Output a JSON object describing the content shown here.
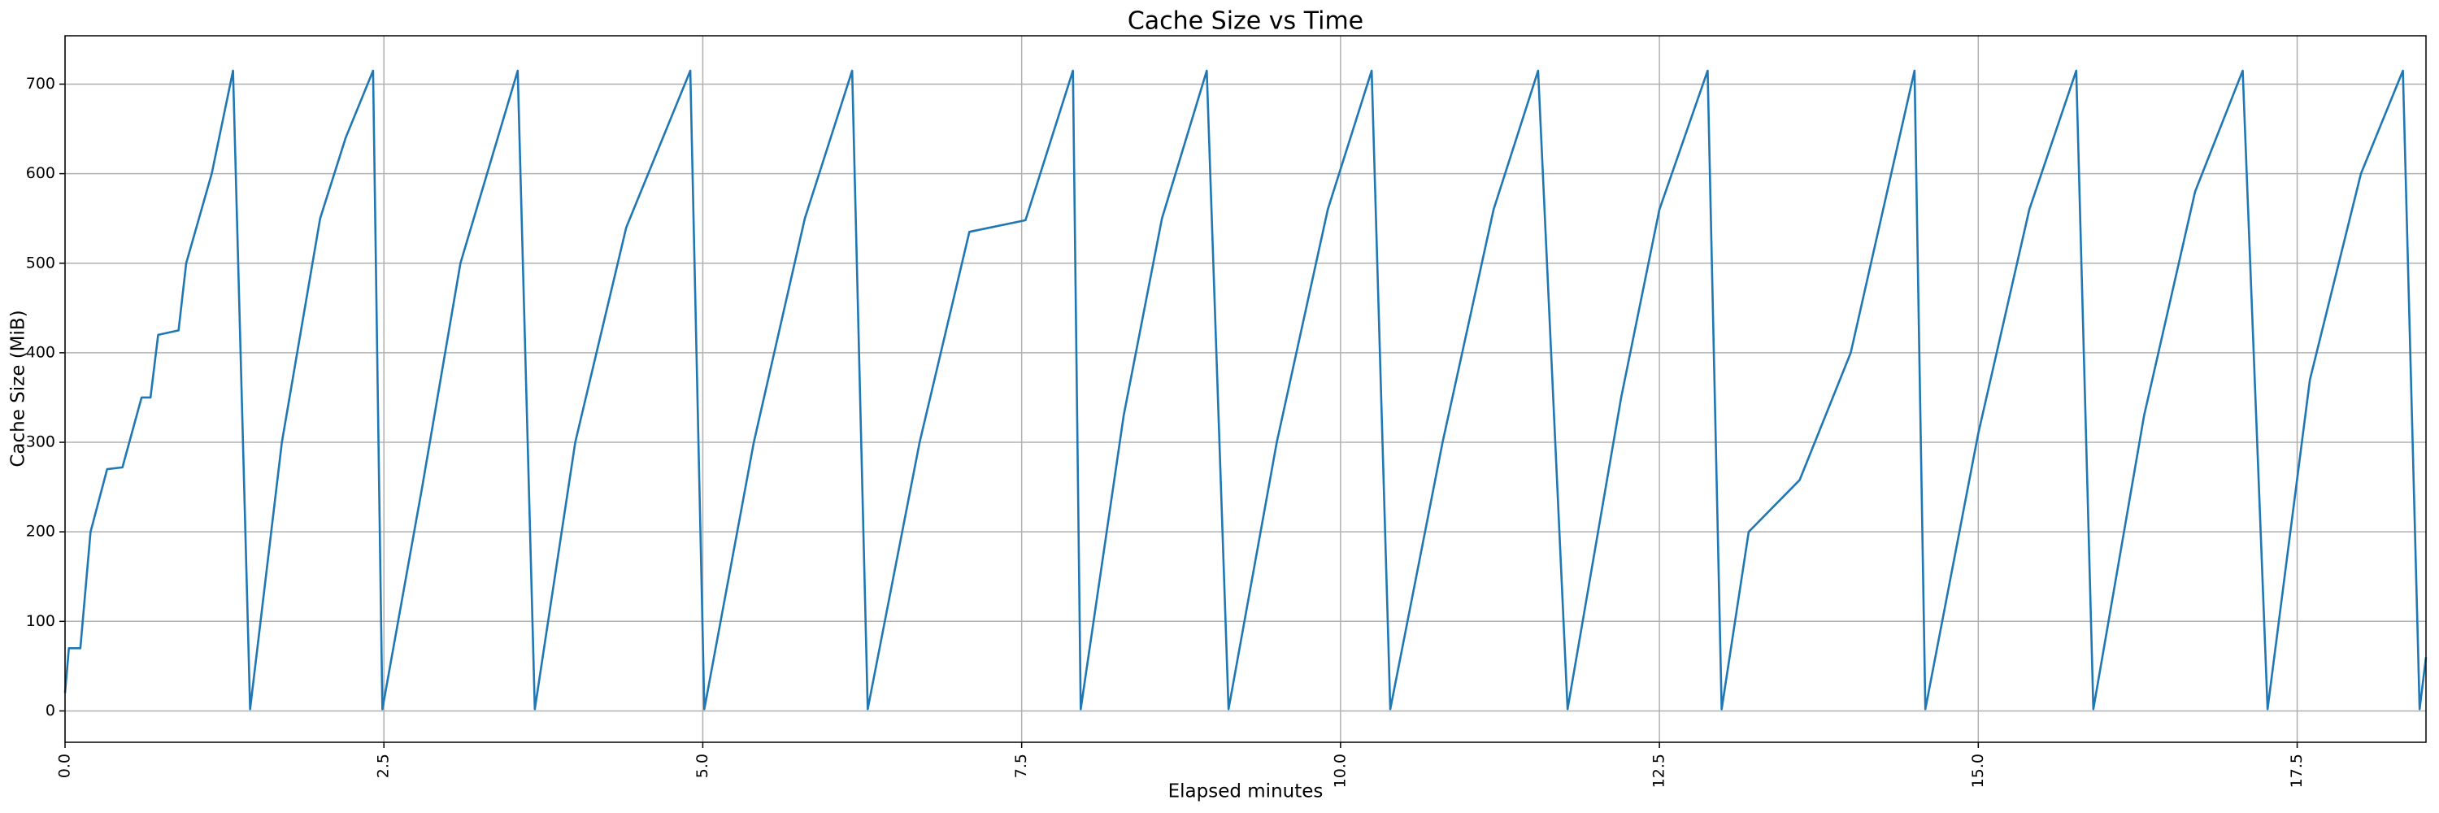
{
  "chart_data": {
    "type": "line",
    "title": "Cache Size vs Time",
    "x_label": "Elapsed minutes",
    "y_label": "Cache Size (MiB)",
    "xlim": [
      0,
      18.51
    ],
    "ylim": [
      -35,
      754
    ],
    "xticks": [
      {
        "value": 0,
        "label": "0.0"
      },
      {
        "value": 2.5,
        "label": "2.5"
      },
      {
        "value": 5,
        "label": "5.0"
      },
      {
        "value": 7.5,
        "label": "7.5"
      },
      {
        "value": 10,
        "label": "10.0"
      },
      {
        "value": 12.5,
        "label": "12.5"
      },
      {
        "value": 15,
        "label": "15.0"
      },
      {
        "value": 17.5,
        "label": "17.5"
      }
    ],
    "yticks": [
      0,
      100,
      200,
      300,
      400,
      500,
      600,
      700
    ],
    "grid": true,
    "x": [
      0,
      0.03,
      0.12,
      0.2,
      0.33,
      0.45,
      0.6,
      0.67,
      0.73,
      0.89,
      0.95,
      1.15,
      1.317,
      1.451,
      1.7,
      2.0,
      2.2,
      2.415,
      2.488,
      2.8,
      3.1,
      3.549,
      3.683,
      4.0,
      4.4,
      4.902,
      5.012,
      5.4,
      5.8,
      6.171,
      6.293,
      6.7,
      7.09,
      7.53,
      7.902,
      7.963,
      8.3,
      8.6,
      8.951,
      9.122,
      9.5,
      9.9,
      10.244,
      10.39,
      10.8,
      11.2,
      11.549,
      11.78,
      12.2,
      12.5,
      12.878,
      12.988,
      13.2,
      13.6,
      14.0,
      14.5,
      14.585,
      15.0,
      15.4,
      15.768,
      15.902,
      16.3,
      16.7,
      17.073,
      17.268,
      17.6,
      18.0,
      18.329,
      18.46,
      18.51
    ],
    "series": [
      {
        "color": "#1f77b4",
        "values": [
          20,
          70,
          70,
          200,
          270,
          272,
          350,
          350,
          420,
          425,
          500,
          600,
          715,
          2,
          300,
          550,
          640,
          715,
          2,
          250,
          500,
          715,
          2,
          300,
          540,
          715,
          2,
          300,
          550,
          715,
          2,
          300,
          535,
          548,
          715,
          2,
          330,
          550,
          715,
          2,
          300,
          560,
          715,
          2,
          300,
          560,
          715,
          2,
          350,
          560,
          715,
          2,
          200,
          258,
          400,
          715,
          2,
          310,
          560,
          715,
          2,
          330,
          580,
          715,
          2,
          370,
          600,
          715,
          2,
          60
        ]
      }
    ]
  }
}
